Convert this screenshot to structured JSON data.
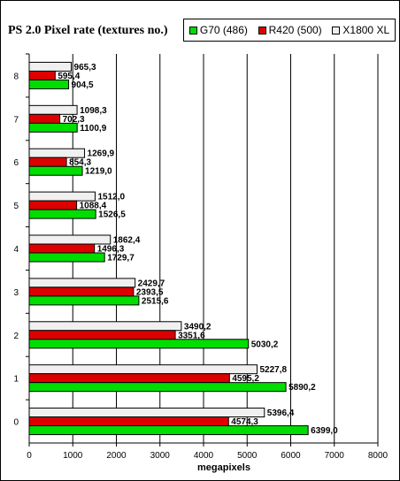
{
  "chart_data": {
    "type": "bar",
    "orientation": "horizontal",
    "title": "PS 2.0 Pixel rate (textures no.)",
    "xlabel": "megapixels",
    "ylabel": "",
    "xlim": [
      0,
      8000
    ],
    "xticks": [
      0,
      1000,
      2000,
      3000,
      4000,
      5000,
      6000,
      7000,
      8000
    ],
    "grid": "vertical",
    "legend_position": "top-right",
    "categories": [
      "0",
      "1",
      "2",
      "3",
      "4",
      "5",
      "6",
      "7",
      "8"
    ],
    "series": [
      {
        "name": "G70 (486)",
        "color": "#00dd00",
        "values": [
          6399.0,
          5890.2,
          5030.2,
          2515.6,
          1729.7,
          1526.5,
          1219.0,
          1100.9,
          904.5
        ],
        "labels": [
          "6399,0",
          "5890,2",
          "5030,2",
          "2515,6",
          "1729,7",
          "1526,5",
          "1219,0",
          "1100,9",
          "904,5"
        ]
      },
      {
        "name": "R420 (500)",
        "color": "#dd0000",
        "values": [
          4574.3,
          4595.2,
          3351.6,
          2393.5,
          1496.3,
          1088.4,
          854.3,
          702.3,
          595.4
        ],
        "labels": [
          "4574,3",
          "4595,2",
          "3351,6",
          "2393,5",
          "1496,3",
          "1088,4",
          "854,3",
          "702,3",
          "595,4"
        ]
      },
      {
        "name": "X1800 XL",
        "color": "#f0f0f0",
        "values": [
          5396.4,
          5227.8,
          3490.2,
          2429.7,
          1862.4,
          1512.0,
          1269.9,
          1098.3,
          965.3
        ],
        "labels": [
          "5396,4",
          "5227,8",
          "3490,2",
          "2429,7",
          "1862,4",
          "1512,0",
          "1269,9",
          "1098,3",
          "965,3"
        ]
      }
    ]
  }
}
